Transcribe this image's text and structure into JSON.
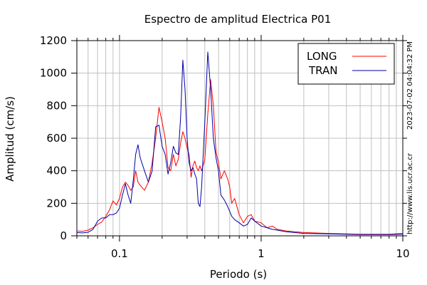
{
  "chart_data": {
    "type": "line",
    "title": "Espectro de amplitud Electrica P01",
    "xlabel": "Periodo (s)",
    "ylabel": "Amplitud (cm/s)",
    "xscale": "log",
    "xlim": [
      0.05,
      10
    ],
    "ylim": [
      0,
      1200
    ],
    "x_ticks": [
      {
        "value": 0.1,
        "label": "0.1"
      },
      {
        "value": 1,
        "label": "1"
      },
      {
        "value": 10,
        "label": "10"
      }
    ],
    "y_ticks": [
      {
        "value": 0,
        "label": "0"
      },
      {
        "value": 200,
        "label": "200"
      },
      {
        "value": 400,
        "label": "400"
      },
      {
        "value": 600,
        "label": "600"
      },
      {
        "value": 800,
        "label": "800"
      },
      {
        "value": 1000,
        "label": "1000"
      },
      {
        "value": 1200,
        "label": "1200"
      }
    ],
    "grid": true,
    "legend": "top-right",
    "series": [
      {
        "name": "LONG",
        "color": "#ff0000",
        "points": [
          [
            0.05,
            30
          ],
          [
            0.055,
            28
          ],
          [
            0.06,
            35
          ],
          [
            0.065,
            50
          ],
          [
            0.07,
            70
          ],
          [
            0.075,
            85
          ],
          [
            0.08,
            120
          ],
          [
            0.085,
            160
          ],
          [
            0.09,
            215
          ],
          [
            0.095,
            190
          ],
          [
            0.1,
            230
          ],
          [
            0.105,
            300
          ],
          [
            0.11,
            330
          ],
          [
            0.115,
            310
          ],
          [
            0.12,
            280
          ],
          [
            0.125,
            300
          ],
          [
            0.13,
            400
          ],
          [
            0.135,
            330
          ],
          [
            0.14,
            310
          ],
          [
            0.15,
            280
          ],
          [
            0.16,
            330
          ],
          [
            0.17,
            450
          ],
          [
            0.18,
            600
          ],
          [
            0.19,
            790
          ],
          [
            0.2,
            700
          ],
          [
            0.21,
            600
          ],
          [
            0.22,
            420
          ],
          [
            0.23,
            400
          ],
          [
            0.24,
            500
          ],
          [
            0.25,
            430
          ],
          [
            0.26,
            470
          ],
          [
            0.27,
            570
          ],
          [
            0.28,
            640
          ],
          [
            0.29,
            600
          ],
          [
            0.3,
            540
          ],
          [
            0.31,
            500
          ],
          [
            0.32,
            360
          ],
          [
            0.33,
            430
          ],
          [
            0.34,
            460
          ],
          [
            0.35,
            420
          ],
          [
            0.36,
            400
          ],
          [
            0.37,
            430
          ],
          [
            0.38,
            400
          ],
          [
            0.4,
            470
          ],
          [
            0.42,
            750
          ],
          [
            0.44,
            960
          ],
          [
            0.46,
            800
          ],
          [
            0.48,
            520
          ],
          [
            0.5,
            450
          ],
          [
            0.52,
            350
          ],
          [
            0.55,
            400
          ],
          [
            0.58,
            350
          ],
          [
            0.6,
            300
          ],
          [
            0.62,
            200
          ],
          [
            0.65,
            230
          ],
          [
            0.7,
            130
          ],
          [
            0.75,
            80
          ],
          [
            0.8,
            120
          ],
          [
            0.85,
            130
          ],
          [
            0.9,
            90
          ],
          [
            1.0,
            80
          ],
          [
            1.1,
            50
          ],
          [
            1.2,
            60
          ],
          [
            1.3,
            40
          ],
          [
            1.5,
            30
          ],
          [
            2.0,
            20
          ],
          [
            3.0,
            15
          ],
          [
            5.0,
            10
          ],
          [
            8.0,
            10
          ],
          [
            10.0,
            15
          ]
        ]
      },
      {
        "name": "TRAN",
        "color": "#0000aa",
        "points": [
          [
            0.05,
            20
          ],
          [
            0.055,
            18
          ],
          [
            0.06,
            22
          ],
          [
            0.065,
            40
          ],
          [
            0.07,
            90
          ],
          [
            0.075,
            110
          ],
          [
            0.08,
            110
          ],
          [
            0.085,
            130
          ],
          [
            0.09,
            130
          ],
          [
            0.095,
            140
          ],
          [
            0.1,
            170
          ],
          [
            0.105,
            250
          ],
          [
            0.11,
            320
          ],
          [
            0.115,
            250
          ],
          [
            0.12,
            200
          ],
          [
            0.125,
            340
          ],
          [
            0.13,
            500
          ],
          [
            0.135,
            560
          ],
          [
            0.14,
            480
          ],
          [
            0.15,
            400
          ],
          [
            0.16,
            330
          ],
          [
            0.17,
            400
          ],
          [
            0.18,
            670
          ],
          [
            0.19,
            680
          ],
          [
            0.2,
            550
          ],
          [
            0.21,
            500
          ],
          [
            0.22,
            380
          ],
          [
            0.23,
            450
          ],
          [
            0.24,
            550
          ],
          [
            0.25,
            510
          ],
          [
            0.26,
            500
          ],
          [
            0.27,
            730
          ],
          [
            0.28,
            1080
          ],
          [
            0.29,
            900
          ],
          [
            0.3,
            600
          ],
          [
            0.31,
            450
          ],
          [
            0.32,
            400
          ],
          [
            0.33,
            420
          ],
          [
            0.34,
            380
          ],
          [
            0.35,
            350
          ],
          [
            0.36,
            200
          ],
          [
            0.37,
            180
          ],
          [
            0.38,
            300
          ],
          [
            0.4,
            700
          ],
          [
            0.42,
            1130
          ],
          [
            0.44,
            900
          ],
          [
            0.46,
            600
          ],
          [
            0.48,
            480
          ],
          [
            0.5,
            400
          ],
          [
            0.52,
            250
          ],
          [
            0.55,
            220
          ],
          [
            0.58,
            180
          ],
          [
            0.6,
            150
          ],
          [
            0.62,
            120
          ],
          [
            0.65,
            100
          ],
          [
            0.7,
            80
          ],
          [
            0.75,
            60
          ],
          [
            0.8,
            70
          ],
          [
            0.85,
            110
          ],
          [
            0.9,
            90
          ],
          [
            1.0,
            60
          ],
          [
            1.1,
            50
          ],
          [
            1.2,
            40
          ],
          [
            1.3,
            35
          ],
          [
            1.5,
            25
          ],
          [
            2.0,
            15
          ],
          [
            3.0,
            12
          ],
          [
            5.0,
            8
          ],
          [
            8.0,
            8
          ],
          [
            10.0,
            10
          ]
        ]
      }
    ]
  },
  "side_notes": {
    "timestamp": "2023-07-02 04:04:32 PM",
    "website": "http://www.lis.ucr.ac.cr"
  }
}
